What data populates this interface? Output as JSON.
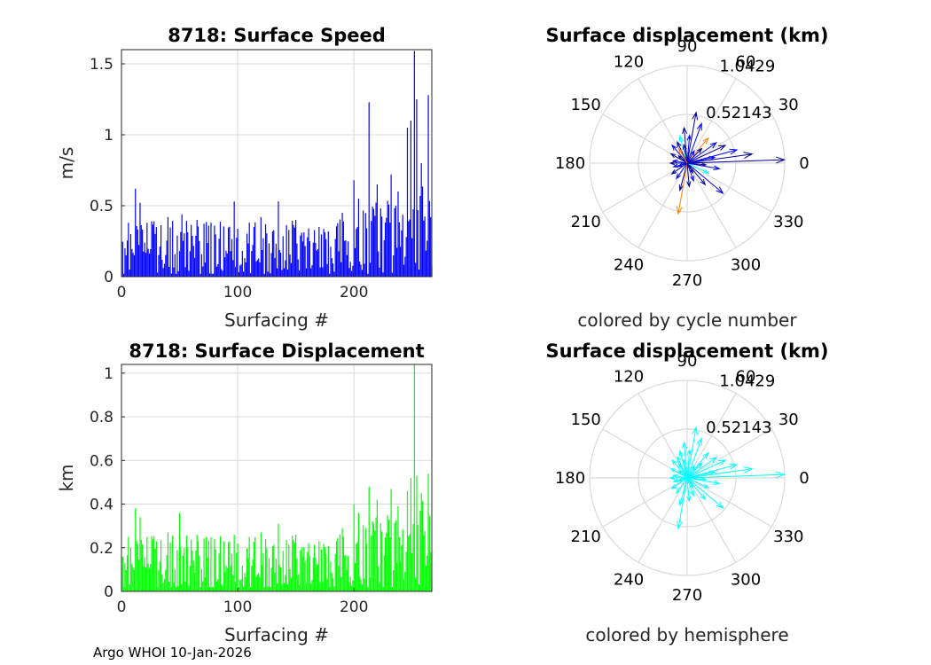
{
  "footer": "Argo WHOI 10-Jan-2026",
  "colors": {
    "speed_bar": "#0000ff",
    "disp_bar": "#00ff00",
    "hemisphere_arrow": "#00ffff",
    "grid": "#d9d9d9",
    "axis": "#262626"
  },
  "chart_data": [
    {
      "type": "bar",
      "title": "8718: Surface Speed",
      "xlabel": "Surfacing #",
      "ylabel": "m/s",
      "xlim": [
        0,
        267
      ],
      "ylim": [
        0,
        1.6
      ],
      "xticks": [
        "0",
        "100",
        "200"
      ],
      "yticks": [
        "0",
        "0.5",
        "1",
        "1.5"
      ],
      "count": 267,
      "peaks": [
        {
          "x": 3,
          "value": 0.2
        },
        {
          "x": 6,
          "value": 0.38
        },
        {
          "x": 8,
          "value": 0.3
        },
        {
          "x": 12,
          "value": 0.62
        },
        {
          "x": 16,
          "value": 0.52
        },
        {
          "x": 22,
          "value": 0.38
        },
        {
          "x": 30,
          "value": 0.35
        },
        {
          "x": 40,
          "value": 0.42
        },
        {
          "x": 52,
          "value": 0.44
        },
        {
          "x": 65,
          "value": 0.4
        },
        {
          "x": 80,
          "value": 0.36
        },
        {
          "x": 97,
          "value": 0.53
        },
        {
          "x": 110,
          "value": 0.38
        },
        {
          "x": 120,
          "value": 0.42
        },
        {
          "x": 135,
          "value": 0.53
        },
        {
          "x": 150,
          "value": 0.4
        },
        {
          "x": 170,
          "value": 0.35
        },
        {
          "x": 190,
          "value": 0.45
        },
        {
          "x": 200,
          "value": 0.68
        },
        {
          "x": 204,
          "value": 0.55
        },
        {
          "x": 213,
          "value": 1.23
        },
        {
          "x": 220,
          "value": 0.65
        },
        {
          "x": 232,
          "value": 0.72
        },
        {
          "x": 238,
          "value": 0.6
        },
        {
          "x": 246,
          "value": 1.05
        },
        {
          "x": 249,
          "value": 1.1
        },
        {
          "x": 252,
          "value": 1.59
        },
        {
          "x": 254,
          "value": 1.25
        },
        {
          "x": 258,
          "value": 0.8
        },
        {
          "x": 264,
          "value": 1.28
        },
        {
          "x": 266,
          "value": 0.42
        }
      ],
      "base_max": 0.4
    },
    {
      "type": "bar",
      "title": "8718: Surface Displacement",
      "xlabel": "Surfacing #",
      "ylabel": "km",
      "xlim": [
        0,
        267
      ],
      "ylim": [
        0,
        1.04
      ],
      "xticks": [
        "0",
        "100",
        "200"
      ],
      "yticks": [
        "0",
        "0.2",
        "0.4",
        "0.6",
        "0.8",
        "1"
      ],
      "count": 267,
      "peaks": [
        {
          "x": 3,
          "value": 0.13
        },
        {
          "x": 6,
          "value": 0.25
        },
        {
          "x": 8,
          "value": 0.2
        },
        {
          "x": 12,
          "value": 0.38
        },
        {
          "x": 16,
          "value": 0.34
        },
        {
          "x": 22,
          "value": 0.25
        },
        {
          "x": 30,
          "value": 0.23
        },
        {
          "x": 40,
          "value": 0.27
        },
        {
          "x": 50,
          "value": 0.36
        },
        {
          "x": 65,
          "value": 0.26
        },
        {
          "x": 80,
          "value": 0.24
        },
        {
          "x": 97,
          "value": 0.26
        },
        {
          "x": 110,
          "value": 0.25
        },
        {
          "x": 120,
          "value": 0.27
        },
        {
          "x": 135,
          "value": 0.31
        },
        {
          "x": 150,
          "value": 0.26
        },
        {
          "x": 170,
          "value": 0.23
        },
        {
          "x": 190,
          "value": 0.29
        },
        {
          "x": 200,
          "value": 0.4
        },
        {
          "x": 204,
          "value": 0.36
        },
        {
          "x": 213,
          "value": 0.48
        },
        {
          "x": 220,
          "value": 0.42
        },
        {
          "x": 232,
          "value": 0.47
        },
        {
          "x": 238,
          "value": 0.39
        },
        {
          "x": 246,
          "value": 0.46
        },
        {
          "x": 249,
          "value": 0.52
        },
        {
          "x": 252,
          "value": 1.04
        },
        {
          "x": 254,
          "value": 0.53
        },
        {
          "x": 258,
          "value": 0.45
        },
        {
          "x": 264,
          "value": 0.54
        },
        {
          "x": 266,
          "value": 0.18
        }
      ],
      "base_max": 0.26
    },
    {
      "type": "polar",
      "title": "Surface displacement (km)",
      "caption": "colored by cycle number",
      "rmax": 1.0429,
      "rings": [
        "0.52143",
        "1.0429"
      ],
      "angles": [
        "0",
        "30",
        "60",
        "90",
        "120",
        "150",
        "180",
        "210",
        "240",
        "270",
        "300",
        "330"
      ],
      "coloring": "cycle",
      "arrows": [
        {
          "angle": 2,
          "r": 1.04
        },
        {
          "angle": 8,
          "r": 0.7
        },
        {
          "angle": 15,
          "r": 0.55
        },
        {
          "angle": 25,
          "r": 0.45
        },
        {
          "angle": 35,
          "r": 0.38
        },
        {
          "angle": 50,
          "r": 0.35
        },
        {
          "angle": 70,
          "r": 0.45
        },
        {
          "angle": 80,
          "r": 0.55
        },
        {
          "angle": 85,
          "r": 0.3
        },
        {
          "angle": 95,
          "r": 0.38
        },
        {
          "angle": 105,
          "r": 0.3
        },
        {
          "angle": 115,
          "r": 0.25
        },
        {
          "angle": 130,
          "r": 0.25
        },
        {
          "angle": 150,
          "r": 0.2
        },
        {
          "angle": 170,
          "r": 0.15
        },
        {
          "angle": 180,
          "r": 0.18
        },
        {
          "angle": 195,
          "r": 0.15
        },
        {
          "angle": 215,
          "r": 0.2
        },
        {
          "angle": 235,
          "r": 0.2
        },
        {
          "angle": 255,
          "r": 0.3
        },
        {
          "angle": 260,
          "r": 0.55
        },
        {
          "angle": 275,
          "r": 0.25
        },
        {
          "angle": 290,
          "r": 0.2
        },
        {
          "angle": 310,
          "r": 0.3
        },
        {
          "angle": 320,
          "r": 0.5
        },
        {
          "angle": 335,
          "r": 0.25
        },
        {
          "angle": 350,
          "r": 0.35
        },
        {
          "angle": 355,
          "r": 0.2
        },
        {
          "angle": 12,
          "r": 0.3
        },
        {
          "angle": 45,
          "r": 0.22
        },
        {
          "angle": 100,
          "r": 0.2
        },
        {
          "angle": 140,
          "r": 0.12
        },
        {
          "angle": 200,
          "r": 0.1
        },
        {
          "angle": 300,
          "r": 0.12
        },
        {
          "angle": 60,
          "r": 0.15
        },
        {
          "angle": 120,
          "r": 0.18
        }
      ]
    },
    {
      "type": "polar",
      "title": "Surface displacement (km)",
      "caption": "colored by hemisphere",
      "rmax": 1.0429,
      "rings": [
        "0.52143",
        "1.0429"
      ],
      "angles": [
        "0",
        "30",
        "60",
        "90",
        "120",
        "150",
        "180",
        "210",
        "240",
        "270",
        "300",
        "330"
      ],
      "coloring": "hemisphere",
      "arrows": [
        {
          "angle": 2,
          "r": 1.04
        },
        {
          "angle": 8,
          "r": 0.7
        },
        {
          "angle": 15,
          "r": 0.55
        },
        {
          "angle": 25,
          "r": 0.45
        },
        {
          "angle": 35,
          "r": 0.38
        },
        {
          "angle": 50,
          "r": 0.35
        },
        {
          "angle": 70,
          "r": 0.45
        },
        {
          "angle": 80,
          "r": 0.55
        },
        {
          "angle": 85,
          "r": 0.3
        },
        {
          "angle": 95,
          "r": 0.38
        },
        {
          "angle": 105,
          "r": 0.3
        },
        {
          "angle": 115,
          "r": 0.25
        },
        {
          "angle": 130,
          "r": 0.25
        },
        {
          "angle": 150,
          "r": 0.2
        },
        {
          "angle": 170,
          "r": 0.15
        },
        {
          "angle": 180,
          "r": 0.18
        },
        {
          "angle": 195,
          "r": 0.15
        },
        {
          "angle": 215,
          "r": 0.2
        },
        {
          "angle": 235,
          "r": 0.2
        },
        {
          "angle": 255,
          "r": 0.3
        },
        {
          "angle": 260,
          "r": 0.55
        },
        {
          "angle": 275,
          "r": 0.25
        },
        {
          "angle": 290,
          "r": 0.2
        },
        {
          "angle": 310,
          "r": 0.3
        },
        {
          "angle": 320,
          "r": 0.5
        },
        {
          "angle": 335,
          "r": 0.25
        },
        {
          "angle": 350,
          "r": 0.35
        },
        {
          "angle": 355,
          "r": 0.2
        },
        {
          "angle": 12,
          "r": 0.3
        },
        {
          "angle": 45,
          "r": 0.22
        },
        {
          "angle": 100,
          "r": 0.2
        },
        {
          "angle": 140,
          "r": 0.12
        },
        {
          "angle": 200,
          "r": 0.1
        },
        {
          "angle": 300,
          "r": 0.12
        },
        {
          "angle": 60,
          "r": 0.15
        },
        {
          "angle": 120,
          "r": 0.18
        }
      ]
    }
  ]
}
